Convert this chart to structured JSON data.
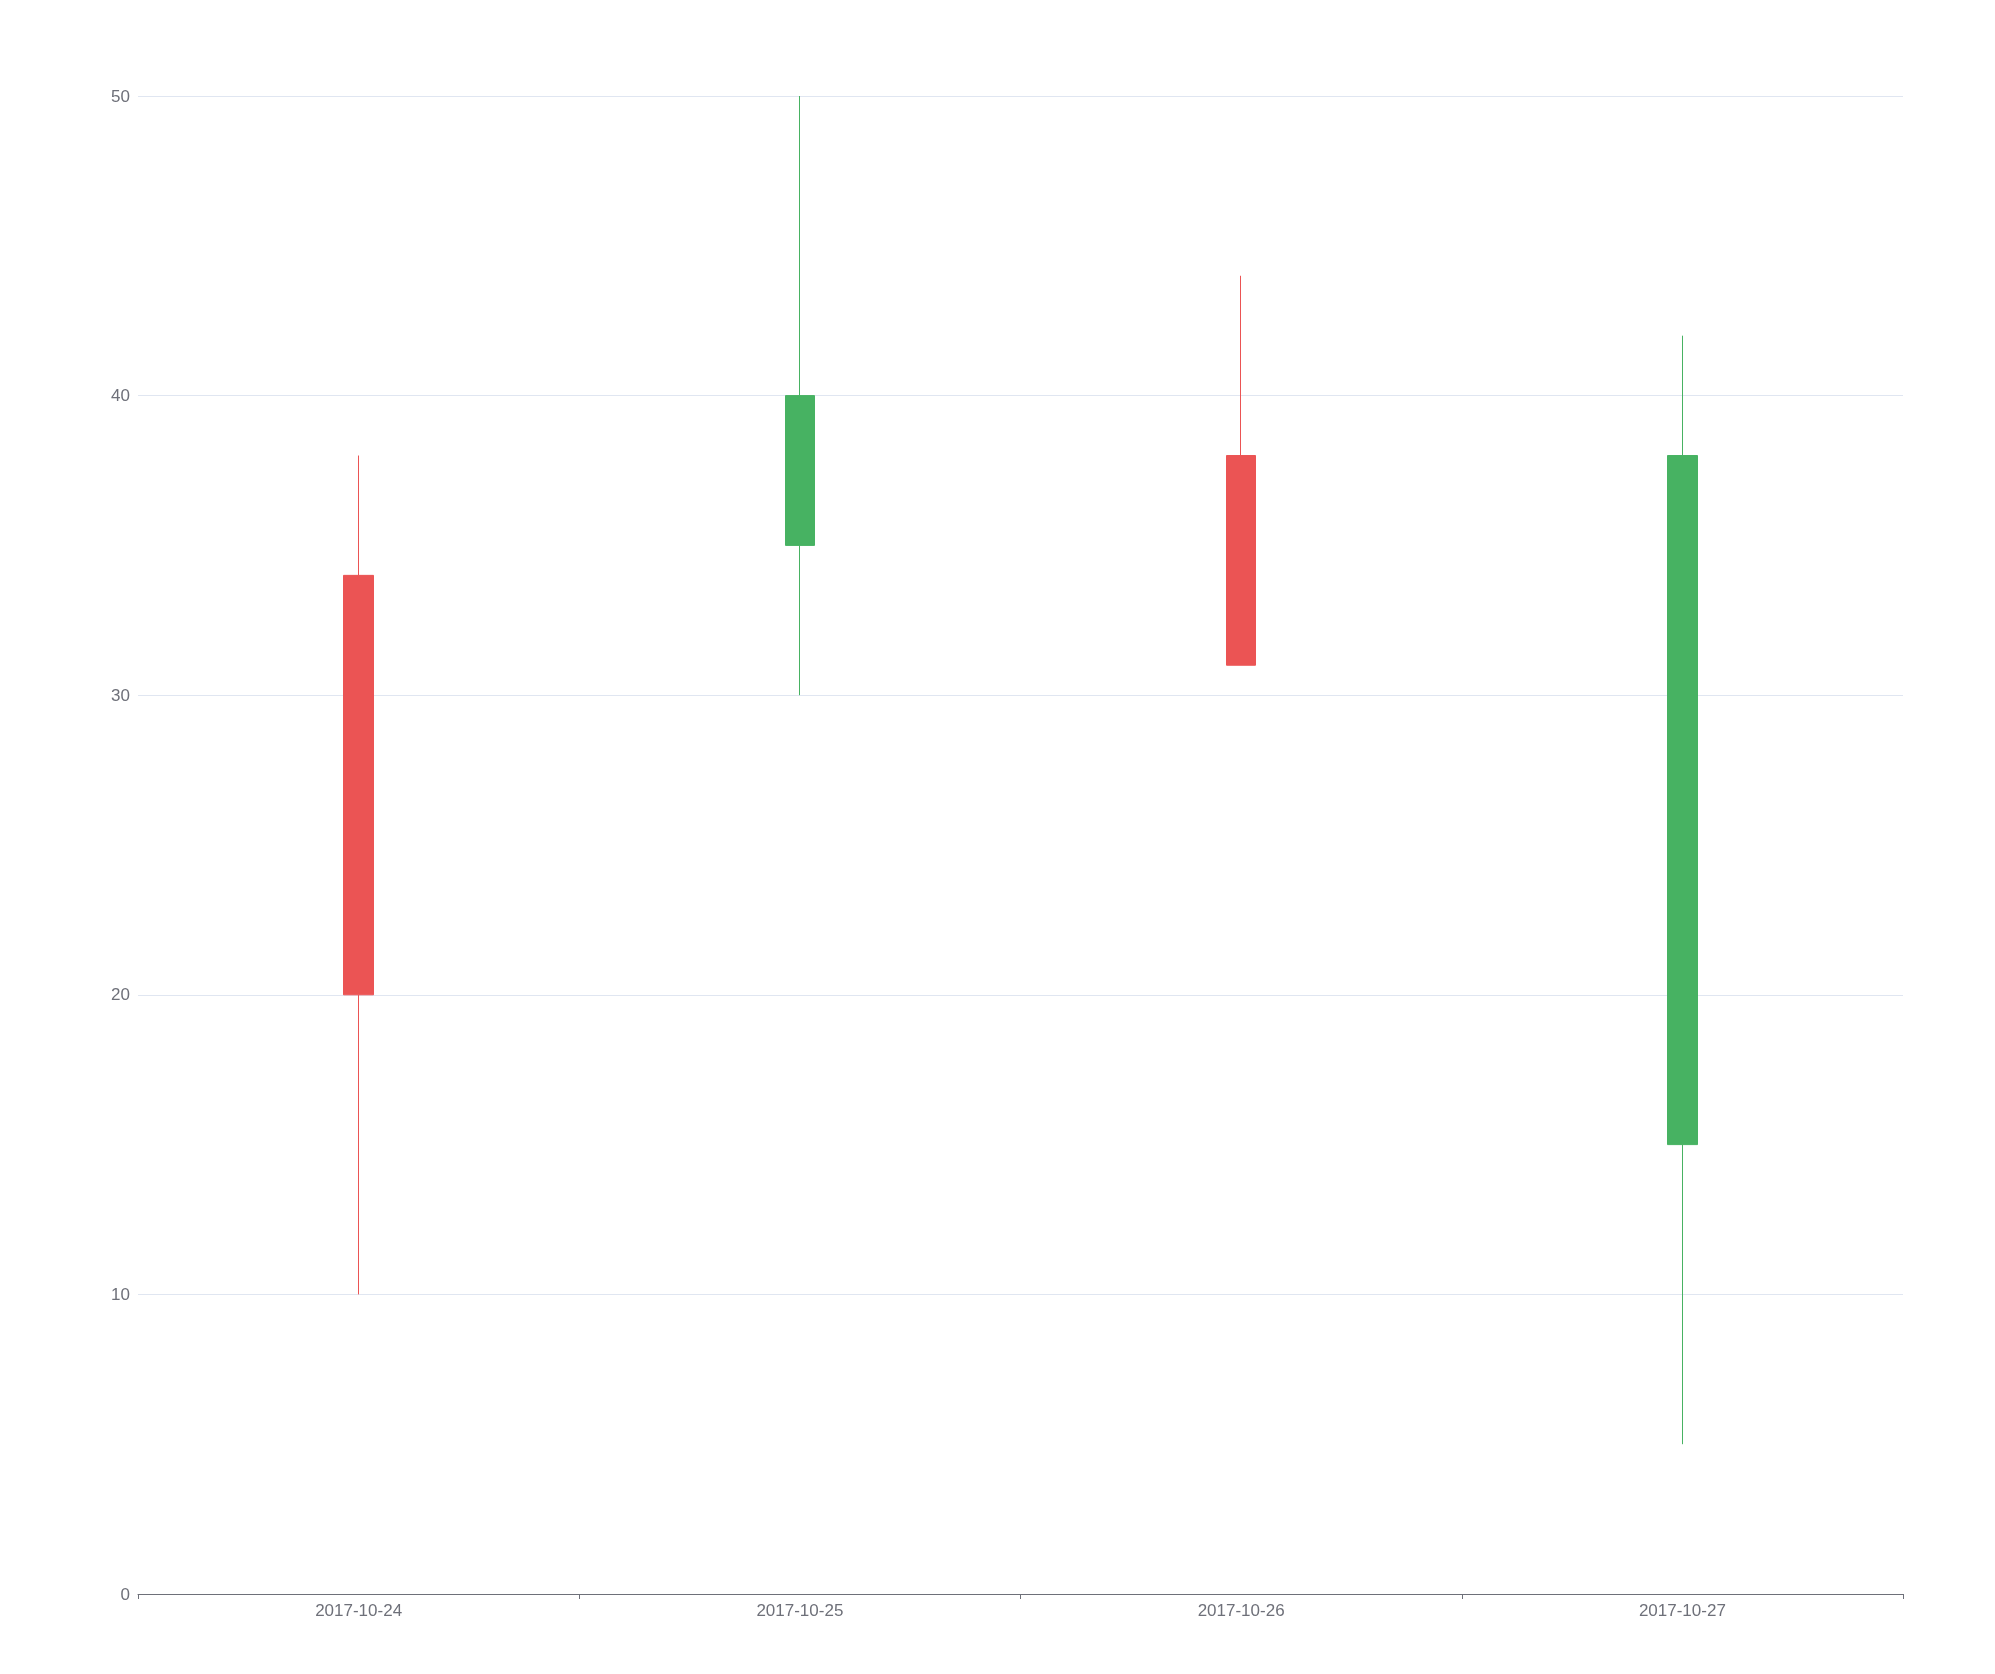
{
  "chart_data": {
    "type": "candlestick",
    "categories": [
      "2017-10-24",
      "2017-10-25",
      "2017-10-26",
      "2017-10-27"
    ],
    "ohlc": [
      [
        20,
        38,
        10,
        34
      ],
      [
        40,
        50,
        30,
        35
      ],
      [
        31,
        44,
        31,
        38
      ],
      [
        38,
        42,
        5,
        15
      ]
    ],
    "colors": [
      "#eb5454",
      "#47b262",
      "#eb5454",
      "#47b262"
    ],
    "ylim": [
      0,
      50
    ],
    "yticks": [
      0,
      10,
      20,
      30,
      40,
      50
    ],
    "grid": "y"
  }
}
